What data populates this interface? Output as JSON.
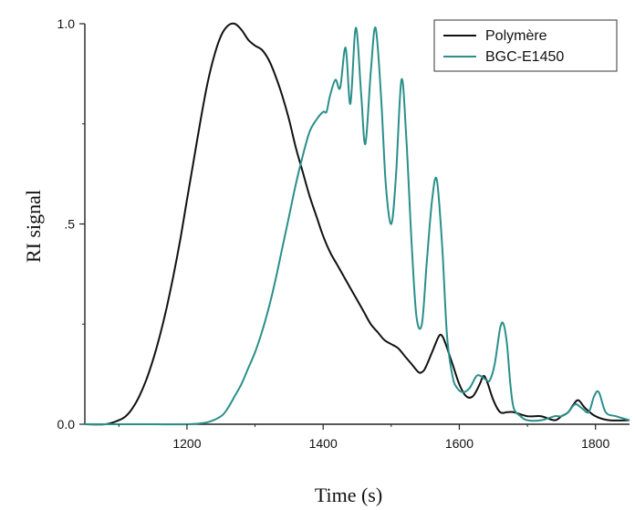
{
  "chart_data": {
    "type": "line",
    "xlabel": "Time (s)",
    "ylabel": "RI signal",
    "xlim": [
      1050,
      1850
    ],
    "ylim": [
      0,
      1.0
    ],
    "x_ticks": [
      1200,
      1400,
      1600,
      1800
    ],
    "y_ticks": [
      0.0,
      0.5,
      1.0
    ],
    "y_tick_labels": [
      "0.0",
      ".5",
      "1.0"
    ],
    "grid": false,
    "legend_position": "top-right",
    "series": [
      {
        "name": "Polymère",
        "color": "#111111",
        "x": [
          1050,
          1080,
          1100,
          1110,
          1120,
          1130,
          1140,
          1150,
          1160,
          1170,
          1180,
          1190,
          1200,
          1210,
          1220,
          1230,
          1240,
          1250,
          1260,
          1270,
          1280,
          1290,
          1300,
          1310,
          1320,
          1330,
          1340,
          1350,
          1360,
          1370,
          1380,
          1390,
          1400,
          1410,
          1420,
          1430,
          1440,
          1450,
          1460,
          1470,
          1480,
          1490,
          1500,
          1510,
          1520,
          1530,
          1540,
          1545,
          1550,
          1560,
          1570,
          1575,
          1580,
          1590,
          1600,
          1610,
          1620,
          1630,
          1635,
          1640,
          1650,
          1660,
          1670,
          1680,
          1700,
          1720,
          1740,
          1750,
          1760,
          1768,
          1775,
          1785,
          1800,
          1820,
          1850
        ],
        "values": [
          0.0,
          0.0,
          0.01,
          0.02,
          0.04,
          0.07,
          0.11,
          0.16,
          0.22,
          0.29,
          0.37,
          0.46,
          0.56,
          0.66,
          0.76,
          0.85,
          0.92,
          0.97,
          0.995,
          1.0,
          0.985,
          0.96,
          0.945,
          0.935,
          0.91,
          0.87,
          0.82,
          0.76,
          0.69,
          0.63,
          0.57,
          0.52,
          0.47,
          0.43,
          0.4,
          0.37,
          0.34,
          0.31,
          0.28,
          0.25,
          0.23,
          0.21,
          0.2,
          0.19,
          0.17,
          0.15,
          0.13,
          0.13,
          0.14,
          0.18,
          0.22,
          0.22,
          0.2,
          0.15,
          0.1,
          0.07,
          0.07,
          0.1,
          0.12,
          0.11,
          0.06,
          0.03,
          0.03,
          0.03,
          0.02,
          0.02,
          0.01,
          0.02,
          0.03,
          0.05,
          0.06,
          0.04,
          0.02,
          0.01,
          0.01
        ]
      },
      {
        "name": "BGC-E1450",
        "color": "#2a8f8a",
        "x": [
          1050,
          1100,
          1150,
          1200,
          1230,
          1250,
          1260,
          1270,
          1280,
          1290,
          1300,
          1310,
          1320,
          1330,
          1340,
          1350,
          1360,
          1370,
          1380,
          1390,
          1400,
          1405,
          1410,
          1418,
          1425,
          1433,
          1440,
          1448,
          1456,
          1462,
          1470,
          1477,
          1485,
          1492,
          1500,
          1507,
          1515,
          1522,
          1530,
          1537,
          1545,
          1552,
          1560,
          1567,
          1575,
          1582,
          1590,
          1597,
          1605,
          1615,
          1625,
          1632,
          1640,
          1645,
          1652,
          1660,
          1665,
          1670,
          1675,
          1680,
          1690,
          1700,
          1720,
          1740,
          1750,
          1760,
          1770,
          1780,
          1790,
          1798,
          1805,
          1815,
          1830,
          1850
        ],
        "values": [
          0.0,
          0.0,
          0.0,
          0.0,
          0.005,
          0.02,
          0.04,
          0.07,
          0.1,
          0.14,
          0.18,
          0.23,
          0.29,
          0.36,
          0.44,
          0.52,
          0.6,
          0.67,
          0.73,
          0.76,
          0.78,
          0.78,
          0.82,
          0.86,
          0.84,
          0.94,
          0.8,
          0.99,
          0.82,
          0.7,
          0.88,
          0.99,
          0.82,
          0.6,
          0.5,
          0.62,
          0.86,
          0.72,
          0.45,
          0.27,
          0.25,
          0.4,
          0.56,
          0.61,
          0.44,
          0.22,
          0.12,
          0.09,
          0.08,
          0.09,
          0.12,
          0.12,
          0.11,
          0.11,
          0.15,
          0.24,
          0.25,
          0.2,
          0.1,
          0.04,
          0.02,
          0.01,
          0.01,
          0.02,
          0.02,
          0.03,
          0.05,
          0.04,
          0.03,
          0.07,
          0.08,
          0.03,
          0.02,
          0.01
        ]
      }
    ]
  }
}
